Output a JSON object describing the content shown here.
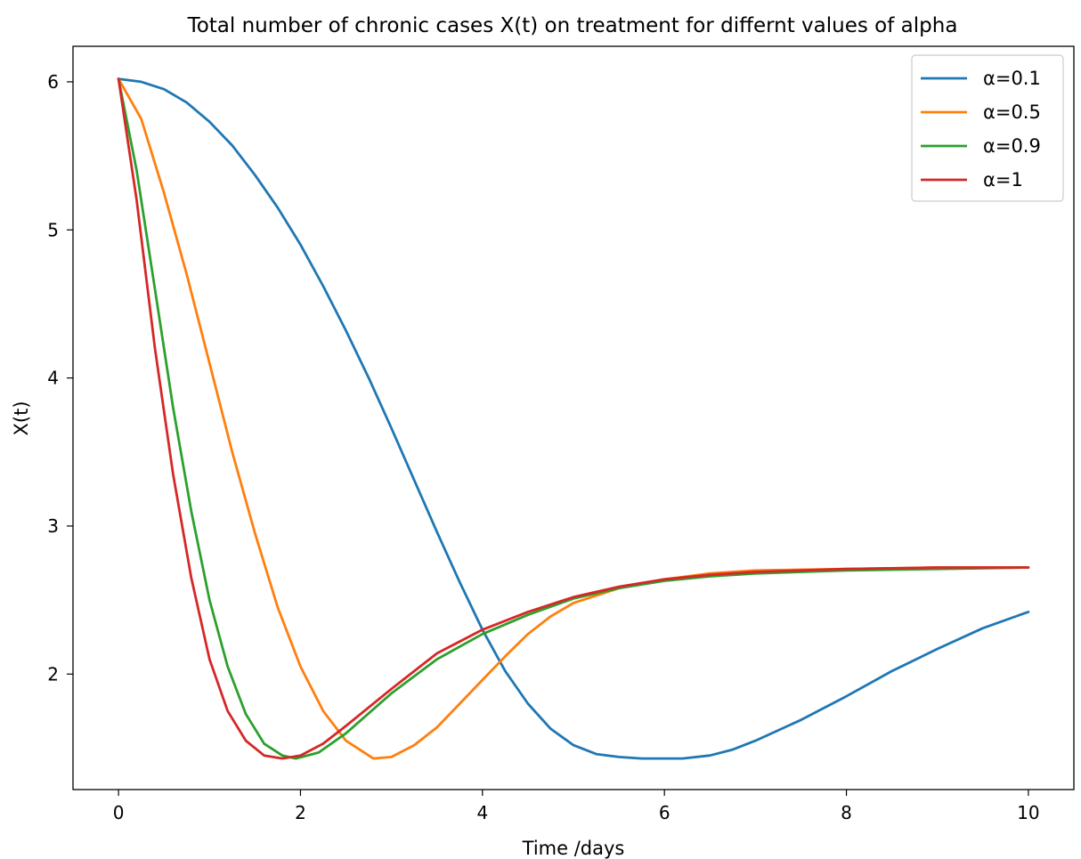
{
  "chart_data": {
    "type": "line",
    "title": "Total number of chronic cases X(t) on treatment for differnt values of alpha",
    "xlabel": "Time /days",
    "ylabel": "X(t)",
    "xlim": [
      -0.5,
      10.5
    ],
    "ylim": [
      1.22,
      6.24
    ],
    "xticks": [
      0,
      2,
      4,
      6,
      8,
      10
    ],
    "yticks": [
      2,
      3,
      4,
      5,
      6
    ],
    "grid": false,
    "legend_position": "top-right",
    "series": [
      {
        "name": "α=0.1",
        "color": "#1f77b4",
        "x": [
          0,
          0.25,
          0.5,
          0.75,
          1,
          1.25,
          1.5,
          1.75,
          2,
          2.25,
          2.5,
          2.75,
          3,
          3.25,
          3.5,
          3.75,
          4,
          4.25,
          4.5,
          4.75,
          5,
          5.25,
          5.5,
          5.75,
          6,
          6.2,
          6.5,
          6.75,
          7,
          7.5,
          8,
          8.5,
          9,
          9.5,
          10
        ],
        "y": [
          6.02,
          6.0,
          5.95,
          5.86,
          5.73,
          5.57,
          5.37,
          5.15,
          4.9,
          4.62,
          4.32,
          4.0,
          3.66,
          3.31,
          2.96,
          2.62,
          2.3,
          2.02,
          1.8,
          1.63,
          1.52,
          1.46,
          1.44,
          1.43,
          1.43,
          1.43,
          1.45,
          1.49,
          1.55,
          1.69,
          1.85,
          2.02,
          2.17,
          2.31,
          2.42
        ]
      },
      {
        "name": "α=0.5",
        "color": "#ff7f0e",
        "x": [
          0,
          0.25,
          0.5,
          0.75,
          1,
          1.25,
          1.5,
          1.75,
          2,
          2.25,
          2.5,
          2.8,
          3,
          3.25,
          3.5,
          3.75,
          4,
          4.25,
          4.5,
          4.75,
          5,
          5.5,
          6,
          6.5,
          7,
          8,
          9,
          10
        ],
        "y": [
          6.02,
          5.75,
          5.25,
          4.7,
          4.1,
          3.5,
          2.95,
          2.45,
          2.05,
          1.75,
          1.55,
          1.43,
          1.44,
          1.52,
          1.64,
          1.8,
          1.96,
          2.12,
          2.27,
          2.39,
          2.48,
          2.58,
          2.64,
          2.68,
          2.7,
          2.71,
          2.72,
          2.72
        ]
      },
      {
        "name": "α=0.9",
        "color": "#2ca02c",
        "x": [
          0,
          0.2,
          0.4,
          0.6,
          0.8,
          1,
          1.2,
          1.4,
          1.6,
          1.8,
          1.95,
          2.2,
          2.5,
          3,
          3.5,
          4,
          4.5,
          5,
          5.5,
          6,
          6.5,
          7,
          8,
          9,
          10
        ],
        "y": [
          6.02,
          5.4,
          4.6,
          3.8,
          3.1,
          2.5,
          2.05,
          1.73,
          1.53,
          1.45,
          1.43,
          1.47,
          1.6,
          1.87,
          2.1,
          2.27,
          2.4,
          2.51,
          2.58,
          2.63,
          2.66,
          2.68,
          2.7,
          2.71,
          2.72
        ]
      },
      {
        "name": "α=1",
        "color": "#d62728",
        "x": [
          0,
          0.2,
          0.4,
          0.6,
          0.8,
          1,
          1.2,
          1.4,
          1.6,
          1.8,
          2,
          2.25,
          2.5,
          3,
          3.5,
          4,
          4.5,
          5,
          5.5,
          6,
          6.5,
          7,
          8,
          9,
          10
        ],
        "y": [
          6.02,
          5.2,
          4.2,
          3.35,
          2.65,
          2.1,
          1.75,
          1.55,
          1.45,
          1.43,
          1.45,
          1.53,
          1.65,
          1.9,
          2.14,
          2.3,
          2.42,
          2.52,
          2.59,
          2.64,
          2.67,
          2.69,
          2.71,
          2.72,
          2.72
        ]
      }
    ]
  }
}
